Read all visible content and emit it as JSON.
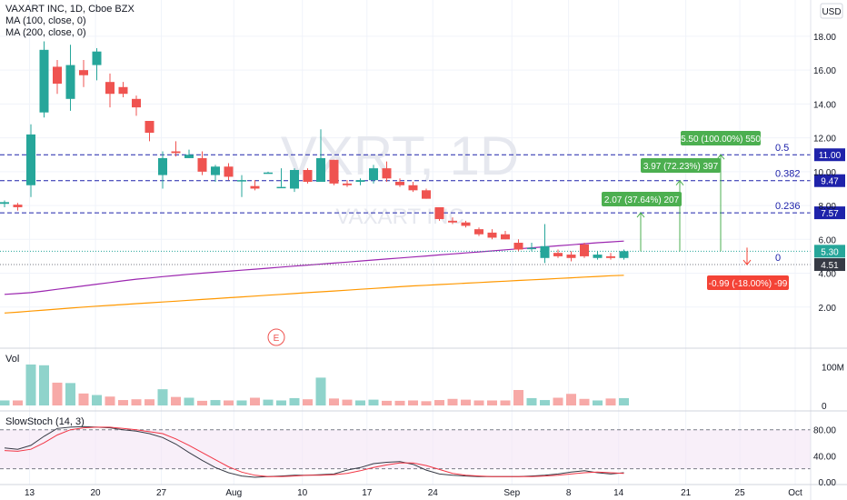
{
  "header": {
    "title": "VAXART INC, 1D, Cboe BZX",
    "ma1_label": "MA (100, close, 0)",
    "ma2_label": "MA (200, close, 0)",
    "currency": "USD"
  },
  "watermark": {
    "symbol": "VXRT, 1D",
    "name": "VAXART INC"
  },
  "earnings_marker": "E",
  "volume_pane": {
    "label": "Vol",
    "ticks": [
      "100M",
      "0"
    ]
  },
  "stoch_pane": {
    "label": "SlowStoch (14, 3)",
    "ticks": [
      "80.00",
      "40.00",
      "0.00"
    ]
  },
  "price_axis_ticks": [
    "18.00",
    "16.00",
    "14.00",
    "12.00",
    "10.00",
    "8.00",
    "6.00",
    "4.00",
    "2.00"
  ],
  "x_axis_ticks": [
    "13",
    "20",
    "27",
    "Aug",
    "10",
    "17",
    "24",
    "Sep",
    "8",
    "14",
    "21",
    "25",
    "Oct"
  ],
  "fib": {
    "levels": [
      {
        "ratio": "0.5",
        "label": "11.00"
      },
      {
        "ratio": "0.382",
        "label": "9.47"
      },
      {
        "ratio": "0.236",
        "label": "7.57"
      },
      {
        "ratio": "0",
        "label": "4.51"
      }
    ]
  },
  "current_price": "5.30",
  "targets": [
    {
      "label": "2.07 (37.64%) 207"
    },
    {
      "label": "3.97 (72.23%) 397"
    },
    {
      "label": "5.50 (100.00%) 550"
    }
  ],
  "stop": {
    "label": "-0.99 (-18.00%) -99"
  },
  "colors": {
    "up": "#26a69a",
    "down": "#ef5350",
    "ma100": "#9c27b0",
    "ma200": "#ff9800",
    "fib": "#1e22aa",
    "stoch_k": "#363a45",
    "stoch_d": "#f23645"
  },
  "chart_data": {
    "type": "candlestick",
    "candles": [
      {
        "x": "07-08",
        "o": 8.1,
        "h": 8.3,
        "l": 7.9,
        "c": 8.2
      },
      {
        "x": "07-09",
        "o": 8.05,
        "h": 8.15,
        "l": 7.7,
        "c": 7.9
      },
      {
        "x": "07-13",
        "o": 9.2,
        "h": 12.8,
        "l": 8.5,
        "c": 12.2
      },
      {
        "x": "07-14",
        "o": 13.5,
        "h": 17.7,
        "l": 13.2,
        "c": 17.2
      },
      {
        "x": "07-15",
        "o": 16.2,
        "h": 16.6,
        "l": 14.6,
        "c": 15.2
      },
      {
        "x": "07-16",
        "o": 14.3,
        "h": 17.5,
        "l": 13.6,
        "c": 16.3
      },
      {
        "x": "07-17",
        "o": 16.0,
        "h": 16.6,
        "l": 15.0,
        "c": 15.7
      },
      {
        "x": "07-20",
        "o": 16.3,
        "h": 17.3,
        "l": 15.4,
        "c": 17.1
      },
      {
        "x": "07-21",
        "o": 15.3,
        "h": 15.8,
        "l": 13.8,
        "c": 14.6
      },
      {
        "x": "07-22",
        "o": 15.0,
        "h": 15.3,
        "l": 14.4,
        "c": 14.6
      },
      {
        "x": "07-23",
        "o": 14.3,
        "h": 14.5,
        "l": 13.3,
        "c": 13.8
      },
      {
        "x": "07-24",
        "o": 13.0,
        "h": 13.0,
        "l": 11.8,
        "c": 12.3
      },
      {
        "x": "07-27",
        "o": 9.8,
        "h": 11.2,
        "l": 9.0,
        "c": 10.8
      },
      {
        "x": "07-28",
        "o": 11.2,
        "h": 11.8,
        "l": 10.9,
        "c": 11.1
      },
      {
        "x": "07-29",
        "o": 10.8,
        "h": 11.3,
        "l": 10.8,
        "c": 11.0
      },
      {
        "x": "07-30",
        "o": 10.8,
        "h": 11.2,
        "l": 9.8,
        "c": 10.0
      },
      {
        "x": "07-31",
        "o": 9.8,
        "h": 10.4,
        "l": 9.4,
        "c": 10.3
      },
      {
        "x": "08-03",
        "o": 10.3,
        "h": 10.5,
        "l": 9.5,
        "c": 9.7
      },
      {
        "x": "08-04",
        "o": 9.5,
        "h": 9.8,
        "l": 8.5,
        "c": 9.5
      },
      {
        "x": "08-05",
        "o": 9.15,
        "h": 9.5,
        "l": 8.9,
        "c": 9.0
      },
      {
        "x": "08-06",
        "o": 9.9,
        "h": 10.0,
        "l": 9.9,
        "c": 9.95
      },
      {
        "x": "08-07",
        "o": 9.1,
        "h": 10.2,
        "l": 9.1,
        "c": 9.1
      },
      {
        "x": "08-10",
        "o": 9.0,
        "h": 10.2,
        "l": 8.8,
        "c": 10.1
      },
      {
        "x": "08-11",
        "o": 10.1,
        "h": 10.2,
        "l": 9.3,
        "c": 9.4
      },
      {
        "x": "08-12",
        "o": 9.4,
        "h": 12.5,
        "l": 9.4,
        "c": 10.8
      },
      {
        "x": "08-13",
        "o": 10.7,
        "h": 10.7,
        "l": 9.2,
        "c": 9.3
      },
      {
        "x": "08-14",
        "o": 9.3,
        "h": 9.5,
        "l": 9.1,
        "c": 9.2
      },
      {
        "x": "08-17",
        "o": 9.4,
        "h": 9.6,
        "l": 9.2,
        "c": 9.5
      },
      {
        "x": "08-18",
        "o": 9.5,
        "h": 10.4,
        "l": 9.3,
        "c": 10.2
      },
      {
        "x": "08-19",
        "o": 10.2,
        "h": 10.6,
        "l": 9.4,
        "c": 9.6
      },
      {
        "x": "08-20",
        "o": 9.4,
        "h": 9.6,
        "l": 9.1,
        "c": 9.2
      },
      {
        "x": "08-21",
        "o": 9.2,
        "h": 9.4,
        "l": 8.8,
        "c": 8.9
      },
      {
        "x": "08-24",
        "o": 8.9,
        "h": 9.0,
        "l": 8.4,
        "c": 8.4
      },
      {
        "x": "08-25",
        "o": 7.9,
        "h": 7.9,
        "l": 7.1,
        "c": 7.2
      },
      {
        "x": "08-26",
        "o": 7.1,
        "h": 7.3,
        "l": 6.9,
        "c": 7.0
      },
      {
        "x": "08-27",
        "o": 7.0,
        "h": 7.1,
        "l": 6.7,
        "c": 6.8
      },
      {
        "x": "08-28",
        "o": 6.6,
        "h": 6.7,
        "l": 6.2,
        "c": 6.3
      },
      {
        "x": "08-31",
        "o": 6.4,
        "h": 6.6,
        "l": 6.0,
        "c": 6.1
      },
      {
        "x": "09-01",
        "o": 6.3,
        "h": 6.5,
        "l": 6.0,
        "c": 6.0
      },
      {
        "x": "09-02",
        "o": 5.8,
        "h": 6.0,
        "l": 5.3,
        "c": 5.4
      },
      {
        "x": "09-03",
        "o": 5.5,
        "h": 5.8,
        "l": 5.3,
        "c": 5.5
      },
      {
        "x": "09-04",
        "o": 4.9,
        "h": 6.9,
        "l": 4.6,
        "c": 5.6
      },
      {
        "x": "09-08",
        "o": 5.2,
        "h": 5.4,
        "l": 4.9,
        "c": 5.0
      },
      {
        "x": "09-09",
        "o": 5.1,
        "h": 5.3,
        "l": 4.7,
        "c": 4.9
      },
      {
        "x": "09-10",
        "o": 5.7,
        "h": 5.8,
        "l": 4.9,
        "c": 5.0
      },
      {
        "x": "09-11",
        "o": 4.9,
        "h": 5.3,
        "l": 4.8,
        "c": 5.1
      },
      {
        "x": "09-14",
        "o": 5.0,
        "h": 5.2,
        "l": 4.8,
        "c": 4.9
      },
      {
        "x": "09-15",
        "o": 4.9,
        "h": 5.4,
        "l": 4.8,
        "c": 5.3
      }
    ],
    "volume_millions": [
      13,
      13,
      106,
      104,
      59,
      58,
      31,
      27,
      23,
      14,
      16,
      16,
      42,
      22,
      20,
      12,
      14,
      13,
      13,
      20,
      15,
      13,
      19,
      16,
      72,
      18,
      15,
      13,
      15,
      12,
      12,
      13,
      11,
      14,
      17,
      15,
      13,
      13,
      13,
      40,
      19,
      14,
      20,
      30,
      17,
      13,
      18,
      19
    ],
    "ma100": [
      2.75,
      2.8,
      2.85,
      2.95,
      3.05,
      3.15,
      3.25,
      3.35,
      3.45,
      3.55,
      3.65,
      3.72,
      3.8,
      3.87,
      3.94,
      4.0,
      4.06,
      4.12,
      4.18,
      4.24,
      4.3,
      4.36,
      4.42,
      4.48,
      4.54,
      4.6,
      4.66,
      4.72,
      4.78,
      4.84,
      4.9,
      4.96,
      5.02,
      5.08,
      5.14,
      5.2,
      5.26,
      5.32,
      5.38,
      5.44,
      5.5,
      5.56,
      5.62,
      5.68,
      5.74,
      5.8,
      5.85,
      5.9
    ],
    "ma200": [
      1.65,
      1.7,
      1.76,
      1.82,
      1.88,
      1.94,
      2.0,
      2.05,
      2.1,
      2.15,
      2.2,
      2.25,
      2.3,
      2.35,
      2.4,
      2.45,
      2.5,
      2.55,
      2.6,
      2.65,
      2.7,
      2.75,
      2.8,
      2.85,
      2.9,
      2.95,
      3.0,
      3.05,
      3.1,
      3.15,
      3.2,
      3.25,
      3.29,
      3.33,
      3.37,
      3.41,
      3.45,
      3.49,
      3.53,
      3.57,
      3.61,
      3.65,
      3.69,
      3.73,
      3.77,
      3.81,
      3.85,
      3.88
    ],
    "stoch_k": [
      52,
      50,
      56,
      70,
      82,
      84,
      85,
      84,
      83,
      80,
      78,
      74,
      68,
      58,
      45,
      33,
      22,
      14,
      9,
      7,
      8,
      9,
      10,
      10,
      11,
      12,
      18,
      22,
      28,
      30,
      31,
      27,
      18,
      12,
      10,
      9,
      8,
      8,
      8,
      8,
      9,
      10,
      12,
      15,
      17,
      14,
      12,
      14
    ],
    "stoch_d": [
      48,
      47,
      50,
      60,
      72,
      80,
      83,
      84,
      84,
      82,
      80,
      77,
      74,
      66,
      56,
      45,
      34,
      23,
      15,
      10,
      8,
      8,
      9,
      10,
      10,
      11,
      13,
      17,
      22,
      26,
      29,
      29,
      25,
      19,
      13,
      10,
      9,
      8,
      8,
      8,
      8,
      9,
      10,
      12,
      14,
      15,
      14,
      13
    ],
    "price_range": [
      0,
      19.5
    ],
    "volume_range_millions": [
      0,
      120
    ],
    "stoch_range": [
      0,
      95
    ]
  }
}
